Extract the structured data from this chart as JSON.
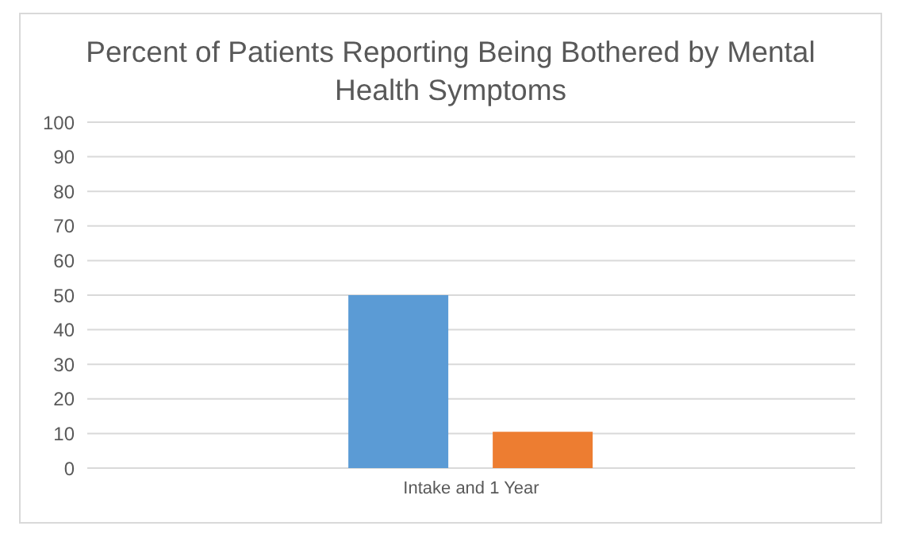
{
  "chart_data": {
    "type": "bar",
    "title": "Percent of Patients Reporting Being Bothered by Mental Health Symptoms",
    "categories": [
      "Intake and 1 Year"
    ],
    "series": [
      {
        "color": "#5b9bd5",
        "values": [
          50
        ]
      },
      {
        "color": "#ed7d31",
        "values": [
          10.5
        ]
      }
    ],
    "ylim": [
      0,
      100
    ],
    "yticks": [
      0,
      10,
      20,
      30,
      40,
      50,
      60,
      70,
      80,
      90,
      100
    ],
    "grid": "y",
    "legend": false
  }
}
